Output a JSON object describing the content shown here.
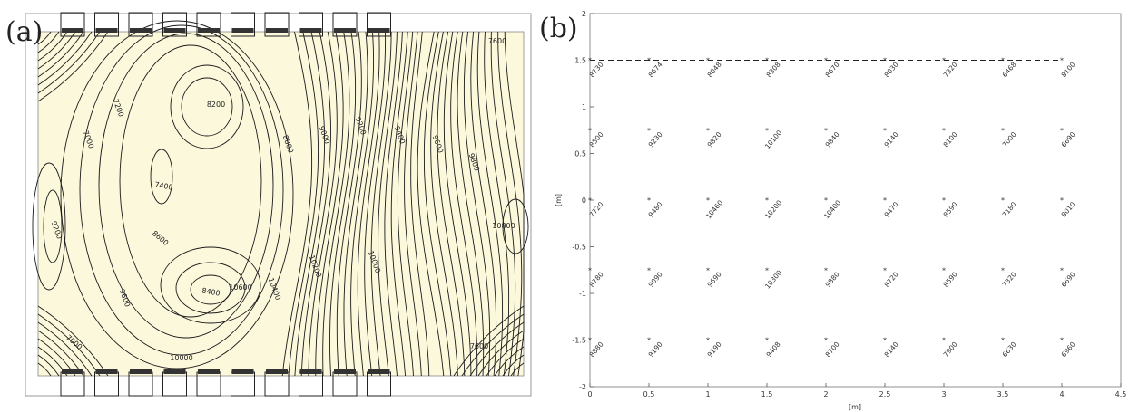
{
  "panels": {
    "a": {
      "label": "(a)"
    },
    "b": {
      "label": "(b)"
    }
  },
  "chart_data": [
    {
      "type": "heatmap",
      "panel": "(a)",
      "title": "",
      "contour_labels": [
        "7600",
        "7000",
        "7200",
        "7400",
        "8200",
        "8400",
        "8600",
        "8800",
        "9000",
        "9200",
        "9400",
        "9600",
        "9800",
        "10000",
        "10200",
        "10400",
        "10600",
        "10800",
        "7600",
        "7000",
        "10000",
        "9600",
        "9200"
      ],
      "colors": {
        "fill": "#fcf8dc",
        "lines": "#1a1a1a"
      }
    },
    {
      "type": "scatter",
      "panel": "(b)",
      "title": "",
      "xlabel": "[m]",
      "ylabel": "[m]",
      "xlim": [
        0,
        4.5
      ],
      "ylim": [
        -2,
        2
      ],
      "xticks": [
        "0",
        "0.5",
        "1",
        "1.5",
        "2",
        "2.5",
        "3",
        "3.5",
        "4",
        "4.5"
      ],
      "yticks": [
        "-2",
        "-1.5",
        "-1",
        "-0.5",
        "0",
        "0.5",
        "1",
        "1.5",
        "2"
      ],
      "x": [
        0,
        0.5,
        1,
        1.5,
        2,
        2.5,
        3,
        3.5,
        4
      ],
      "y": [
        1.5,
        0.75,
        0,
        -0.75,
        -1.5
      ],
      "values": [
        [
          "8730",
          "8674",
          "8048",
          "8308",
          "8670",
          "8030",
          "7320",
          "6468",
          "8100"
        ],
        [
          "8500",
          "9230",
          "9820",
          "10100",
          "9840",
          "9140",
          "8100",
          "7000",
          "6690"
        ],
        [
          "7720",
          "9480",
          "10460",
          "10200",
          "10400",
          "9470",
          "8590",
          "7180",
          "8010"
        ],
        [
          "8780",
          "9090",
          "9690",
          "10300",
          "9880",
          "8720",
          "8590",
          "7320",
          "6690"
        ],
        [
          "8880",
          "9190",
          "9190",
          "9408",
          "8700",
          "8140",
          "7900",
          "6630",
          "6960"
        ]
      ],
      "dashed_lines_y": [
        1.5,
        -1.5
      ],
      "grid": false
    }
  ]
}
